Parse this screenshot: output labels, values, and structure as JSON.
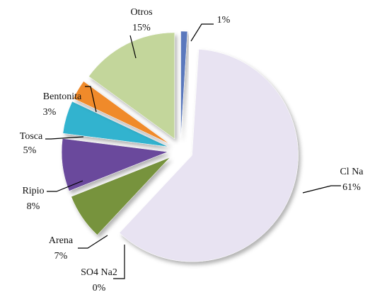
{
  "chart_data": {
    "type": "pie",
    "categories": [
      null,
      "Cl Na",
      "SO4 Na2",
      "Arena",
      "Ripio",
      "Tosca",
      "Bentonita",
      "Otros"
    ],
    "values": [
      1,
      61,
      0,
      7,
      8,
      5,
      3,
      15
    ],
    "value_labels": [
      "1%",
      "61%",
      "0%",
      "7%",
      "8%",
      "5%",
      "3%",
      "15%"
    ],
    "colors": [
      "#5a78bd",
      "#e8e3f2",
      "#9bbb59",
      "#77933c",
      "#6a4a9c",
      "#33b3cf",
      "#f08a2c",
      "#c3d69b"
    ]
  }
}
